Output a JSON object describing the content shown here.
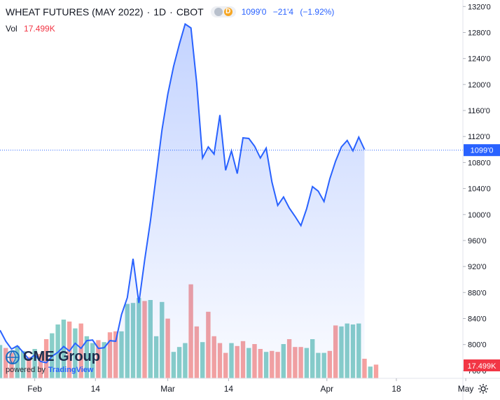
{
  "header": {
    "symbol": "WHEAT FUTURES (MAY 2022)",
    "interval": "1D",
    "exchange": "CBOT",
    "badge_letter": "D",
    "last": "1099'0",
    "change": "−21'4",
    "change_pct": "(−1.92%)"
  },
  "volume": {
    "label": "Vol",
    "value": "17.499K"
  },
  "logo": {
    "brand": "CME Group",
    "powered": "powered by",
    "tv": "TradingView"
  },
  "colors": {
    "line": "#2962ff",
    "vol_up": "#26a69a",
    "vol_down": "#ef5350",
    "label_price_bg": "#2962ff",
    "label_vol_bg": "#f23645"
  },
  "chart_data": {
    "type": "area",
    "title": "WHEAT FUTURES (MAY 2022)",
    "y_axis": {
      "range": [
        748,
        1330
      ],
      "ticks": [
        {
          "v": 760,
          "label": "760'0"
        },
        {
          "v": 800,
          "label": "800'0"
        },
        {
          "v": 840,
          "label": "840'0"
        },
        {
          "v": 880,
          "label": "880'0"
        },
        {
          "v": 920,
          "label": "920'0"
        },
        {
          "v": 960,
          "label": "960'0"
        },
        {
          "v": 1000,
          "label": "1000'0"
        },
        {
          "v": 1040,
          "label": "1040'0"
        },
        {
          "v": 1080,
          "label": "1080'0"
        },
        {
          "v": 1120,
          "label": "1120'0"
        },
        {
          "v": 1160,
          "label": "1160'0"
        },
        {
          "v": 1200,
          "label": "1200'0"
        },
        {
          "v": 1240,
          "label": "1240'0"
        },
        {
          "v": 1280,
          "label": "1280'0"
        },
        {
          "v": 1320,
          "label": "1320'0"
        }
      ]
    },
    "x_axis": {
      "range": [
        0,
        80
      ],
      "ticks": [
        {
          "x": 6,
          "label": "Feb"
        },
        {
          "x": 16.5,
          "label": "14"
        },
        {
          "x": 29,
          "label": "Mar"
        },
        {
          "x": 39.5,
          "label": "14"
        },
        {
          "x": 56.5,
          "label": "Apr"
        },
        {
          "x": 68.5,
          "label": "18"
        },
        {
          "x": 80.5,
          "label": "May"
        }
      ]
    },
    "last_price": {
      "value": 1099,
      "label": "1099'0"
    },
    "last_volume_label": "17.499K",
    "price": [
      {
        "x": 0,
        "y": 822
      },
      {
        "x": 1,
        "y": 805
      },
      {
        "x": 2,
        "y": 793
      },
      {
        "x": 3,
        "y": 798
      },
      {
        "x": 4,
        "y": 788
      },
      {
        "x": 5,
        "y": 777
      },
      {
        "x": 6,
        "y": 784
      },
      {
        "x": 7,
        "y": 774
      },
      {
        "x": 8,
        "y": 772
      },
      {
        "x": 9,
        "y": 782
      },
      {
        "x": 10,
        "y": 788
      },
      {
        "x": 11,
        "y": 797
      },
      {
        "x": 12,
        "y": 790
      },
      {
        "x": 13,
        "y": 802
      },
      {
        "x": 14,
        "y": 794
      },
      {
        "x": 15,
        "y": 806
      },
      {
        "x": 16,
        "y": 807
      },
      {
        "x": 17,
        "y": 794
      },
      {
        "x": 18,
        "y": 795
      },
      {
        "x": 19,
        "y": 806
      },
      {
        "x": 20,
        "y": 805
      },
      {
        "x": 21,
        "y": 846
      },
      {
        "x": 22,
        "y": 872
      },
      {
        "x": 23,
        "y": 932
      },
      {
        "x": 24,
        "y": 864
      },
      {
        "x": 25,
        "y": 930
      },
      {
        "x": 26,
        "y": 990
      },
      {
        "x": 27,
        "y": 1060
      },
      {
        "x": 28,
        "y": 1130
      },
      {
        "x": 29,
        "y": 1185
      },
      {
        "x": 30,
        "y": 1228
      },
      {
        "x": 31,
        "y": 1262
      },
      {
        "x": 32,
        "y": 1293
      },
      {
        "x": 33,
        "y": 1287
      },
      {
        "x": 34,
        "y": 1202
      },
      {
        "x": 35,
        "y": 1087
      },
      {
        "x": 36,
        "y": 1104
      },
      {
        "x": 37,
        "y": 1093
      },
      {
        "x": 38,
        "y": 1153
      },
      {
        "x": 39,
        "y": 1068
      },
      {
        "x": 40,
        "y": 1098
      },
      {
        "x": 41,
        "y": 1063
      },
      {
        "x": 42,
        "y": 1118
      },
      {
        "x": 43,
        "y": 1117
      },
      {
        "x": 44,
        "y": 1105
      },
      {
        "x": 45,
        "y": 1087
      },
      {
        "x": 46,
        "y": 1102
      },
      {
        "x": 47,
        "y": 1050
      },
      {
        "x": 48,
        "y": 1014
      },
      {
        "x": 49,
        "y": 1027
      },
      {
        "x": 50,
        "y": 1010
      },
      {
        "x": 51,
        "y": 997
      },
      {
        "x": 52,
        "y": 983
      },
      {
        "x": 53,
        "y": 1009
      },
      {
        "x": 54,
        "y": 1043
      },
      {
        "x": 55,
        "y": 1036
      },
      {
        "x": 56,
        "y": 1020
      },
      {
        "x": 57,
        "y": 1055
      },
      {
        "x": 58,
        "y": 1082
      },
      {
        "x": 59,
        "y": 1104
      },
      {
        "x": 60,
        "y": 1114
      },
      {
        "x": 61,
        "y": 1098
      },
      {
        "x": 62,
        "y": 1119
      },
      {
        "x": 63,
        "y": 1100
      }
    ],
    "volume": [
      {
        "x": 0,
        "v": 0.34,
        "d": "up"
      },
      {
        "x": 1,
        "v": 0.31,
        "d": "down"
      },
      {
        "x": 2,
        "v": 0.26,
        "d": "down"
      },
      {
        "x": 3,
        "v": 0.33,
        "d": "up"
      },
      {
        "x": 4,
        "v": 0.28,
        "d": "up"
      },
      {
        "x": 5,
        "v": 0.22,
        "d": "down"
      },
      {
        "x": 6,
        "v": 0.3,
        "d": "up"
      },
      {
        "x": 7,
        "v": 0.25,
        "d": "down"
      },
      {
        "x": 8,
        "v": 0.4,
        "d": "down"
      },
      {
        "x": 9,
        "v": 0.46,
        "d": "up"
      },
      {
        "x": 10,
        "v": 0.55,
        "d": "up"
      },
      {
        "x": 11,
        "v": 0.6,
        "d": "up"
      },
      {
        "x": 12,
        "v": 0.58,
        "d": "down"
      },
      {
        "x": 13,
        "v": 0.51,
        "d": "up"
      },
      {
        "x": 14,
        "v": 0.56,
        "d": "down"
      },
      {
        "x": 15,
        "v": 0.43,
        "d": "up"
      },
      {
        "x": 16,
        "v": 0.36,
        "d": "up"
      },
      {
        "x": 17,
        "v": 0.39,
        "d": "down"
      },
      {
        "x": 18,
        "v": 0.37,
        "d": "up"
      },
      {
        "x": 19,
        "v": 0.47,
        "d": "down"
      },
      {
        "x": 20,
        "v": 0.48,
        "d": "down"
      },
      {
        "x": 21,
        "v": 0.48,
        "d": "up"
      },
      {
        "x": 22,
        "v": 0.76,
        "d": "up"
      },
      {
        "x": 23,
        "v": 0.77,
        "d": "up"
      },
      {
        "x": 24,
        "v": 0.82,
        "d": "up"
      },
      {
        "x": 25,
        "v": 0.79,
        "d": "down"
      },
      {
        "x": 26,
        "v": 0.8,
        "d": "up"
      },
      {
        "x": 27,
        "v": 0.43,
        "d": "up"
      },
      {
        "x": 28,
        "v": 0.78,
        "d": "up"
      },
      {
        "x": 29,
        "v": 0.61,
        "d": "down"
      },
      {
        "x": 30,
        "v": 0.27,
        "d": "up"
      },
      {
        "x": 31,
        "v": 0.32,
        "d": "up"
      },
      {
        "x": 32,
        "v": 0.36,
        "d": "up"
      },
      {
        "x": 33,
        "v": 0.96,
        "d": "down"
      },
      {
        "x": 34,
        "v": 0.53,
        "d": "down"
      },
      {
        "x": 35,
        "v": 0.37,
        "d": "up"
      },
      {
        "x": 36,
        "v": 0.68,
        "d": "down"
      },
      {
        "x": 37,
        "v": 0.43,
        "d": "down"
      },
      {
        "x": 38,
        "v": 0.36,
        "d": "down"
      },
      {
        "x": 39,
        "v": 0.26,
        "d": "down"
      },
      {
        "x": 40,
        "v": 0.36,
        "d": "up"
      },
      {
        "x": 41,
        "v": 0.33,
        "d": "down"
      },
      {
        "x": 42,
        "v": 0.38,
        "d": "down"
      },
      {
        "x": 43,
        "v": 0.31,
        "d": "up"
      },
      {
        "x": 44,
        "v": 0.35,
        "d": "down"
      },
      {
        "x": 45,
        "v": 0.3,
        "d": "down"
      },
      {
        "x": 46,
        "v": 0.27,
        "d": "up"
      },
      {
        "x": 47,
        "v": 0.28,
        "d": "down"
      },
      {
        "x": 48,
        "v": 0.27,
        "d": "down"
      },
      {
        "x": 49,
        "v": 0.35,
        "d": "up"
      },
      {
        "x": 50,
        "v": 0.4,
        "d": "down"
      },
      {
        "x": 51,
        "v": 0.32,
        "d": "down"
      },
      {
        "x": 52,
        "v": 0.32,
        "d": "down"
      },
      {
        "x": 53,
        "v": 0.31,
        "d": "up"
      },
      {
        "x": 54,
        "v": 0.4,
        "d": "up"
      },
      {
        "x": 55,
        "v": 0.26,
        "d": "up"
      },
      {
        "x": 56,
        "v": 0.26,
        "d": "up"
      },
      {
        "x": 57,
        "v": 0.28,
        "d": "down"
      },
      {
        "x": 58,
        "v": 0.54,
        "d": "down"
      },
      {
        "x": 59,
        "v": 0.53,
        "d": "up"
      },
      {
        "x": 60,
        "v": 0.56,
        "d": "up"
      },
      {
        "x": 61,
        "v": 0.55,
        "d": "up"
      },
      {
        "x": 62,
        "v": 0.56,
        "d": "up"
      },
      {
        "x": 63,
        "v": 0.2,
        "d": "down"
      },
      {
        "x": 64,
        "v": 0.12,
        "d": "up"
      },
      {
        "x": 65,
        "v": 0.14,
        "d": "down"
      }
    ]
  }
}
